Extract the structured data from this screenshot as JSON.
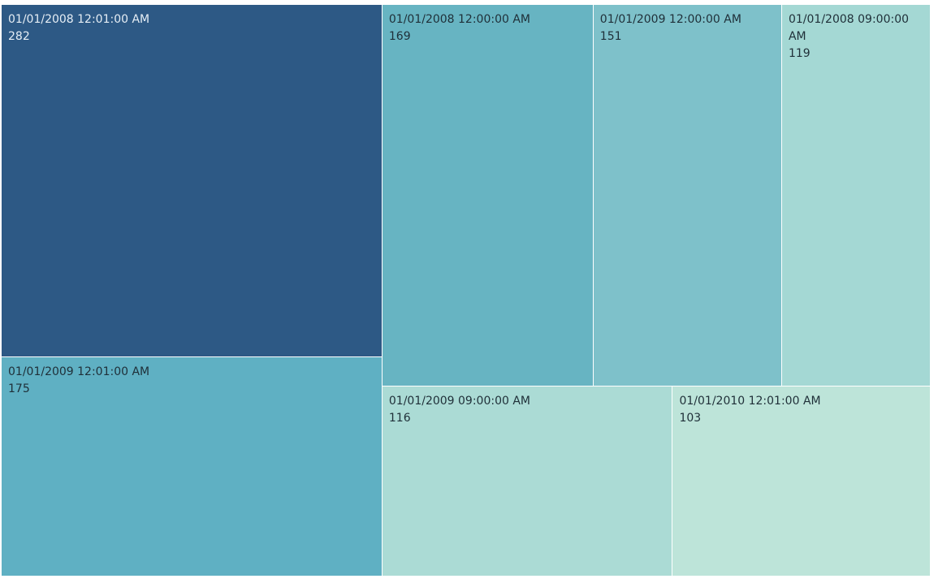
{
  "chart_data": {
    "type": "treemap",
    "title": "",
    "items": [
      {
        "label": "01/01/2008 12:01:00 AM",
        "value": 282,
        "color": "#2d5985",
        "text_color": "#e6eef5"
      },
      {
        "label": "01/01/2009 12:01:00 AM",
        "value": 175,
        "color": "#5fb0c3",
        "text_color": "#1f2f38"
      },
      {
        "label": "01/01/2008 12:00:00 AM",
        "value": 169,
        "color": "#67b4c2",
        "text_color": "#1f2f38"
      },
      {
        "label": "01/01/2009 12:00:00 AM",
        "value": 151,
        "color": "#7ec1ca",
        "text_color": "#1f2f38"
      },
      {
        "label": "01/01/2008 09:00:00 AM",
        "value": 119,
        "color": "#a4d8d4",
        "text_color": "#1f2f38"
      },
      {
        "label": "01/01/2009 09:00:00 AM",
        "value": 116,
        "color": "#abdbd5",
        "text_color": "#1f2f38"
      },
      {
        "label": "01/01/2010 12:01:00 AM",
        "value": 103,
        "color": "#bde4d9",
        "text_color": "#1f2f38"
      }
    ]
  }
}
